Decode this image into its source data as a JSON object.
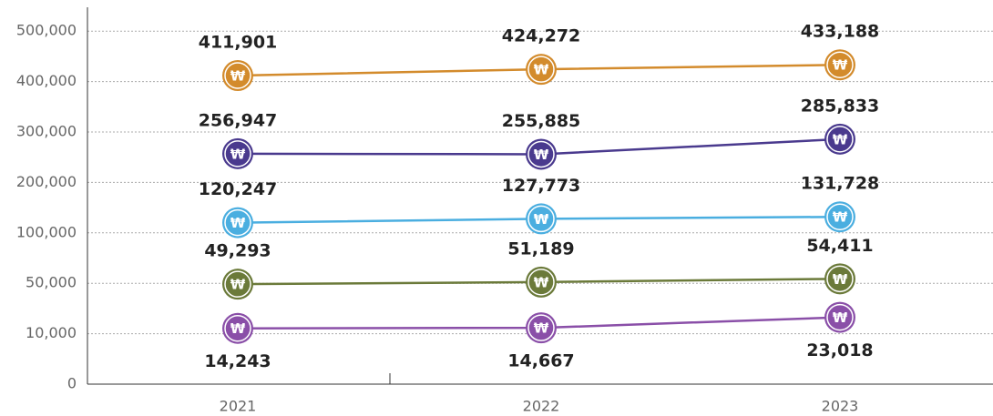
{
  "chart_data": {
    "type": "line",
    "categories": [
      "2021",
      "2022",
      "2023"
    ],
    "marker_symbol": "₩",
    "yticks": [
      0,
      {
        "value": 10000,
        "label": "10,000"
      },
      {
        "value": 50000,
        "label": "50,000"
      },
      {
        "value": 100000,
        "label": "100,000"
      },
      {
        "value": 200000,
        "label": "200,000"
      },
      {
        "value": 300000,
        "label": "300,000"
      },
      {
        "value": 400000,
        "label": "400,000"
      },
      {
        "value": 500000,
        "label": "500,000"
      }
    ],
    "ylim": [
      0,
      500000
    ],
    "grid": true,
    "series": [
      {
        "color": "#d38b2c",
        "values": [
          411901,
          424272,
          433188
        ],
        "value_labels": [
          "411,901",
          "424,272",
          "433,188"
        ],
        "label_position": "above"
      },
      {
        "color": "#4a3a8e",
        "values": [
          256947,
          255885,
          285833
        ],
        "value_labels": [
          "256,947",
          "255,885",
          "285,833"
        ],
        "label_position": "above"
      },
      {
        "color": "#4aaee0",
        "values": [
          120247,
          127773,
          131728
        ],
        "value_labels": [
          "120,247",
          "127,773",
          "131,728"
        ],
        "label_position": "above"
      },
      {
        "color": "#6b7a3a",
        "values": [
          49293,
          51189,
          54411
        ],
        "value_labels": [
          "49,293",
          "51,189",
          "54,411"
        ],
        "label_position": "above"
      },
      {
        "color": "#8a4fa8",
        "values": [
          14243,
          14667,
          23018
        ],
        "value_labels": [
          "14,243",
          "14,667",
          "23,018"
        ],
        "label_position": "below"
      }
    ]
  }
}
